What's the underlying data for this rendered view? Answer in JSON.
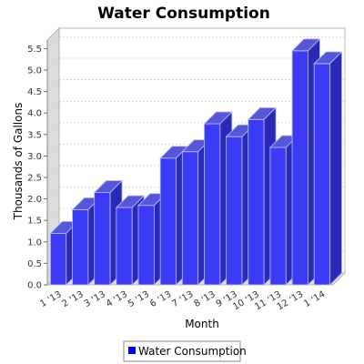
{
  "chart_data": {
    "type": "bar",
    "title": "Water Consumption",
    "xlabel": "Month",
    "ylabel": "Thousands of Gallons",
    "categories": [
      "1 '13",
      "2 '13",
      "3 '13",
      "4 '13",
      "5 '13",
      "6 '13",
      "7 '13",
      "8 '13",
      "9 '13",
      "10 '13",
      "11 '13",
      "12 '13",
      "1 '14"
    ],
    "series": [
      {
        "name": "Water Consumption",
        "values": [
          1.2,
          1.75,
          2.15,
          1.8,
          1.85,
          2.95,
          3.1,
          3.75,
          3.45,
          3.85,
          3.2,
          5.45,
          5.15
        ]
      }
    ],
    "ylim": [
      0,
      5.7
    ],
    "yticks": [
      "0.0",
      "0.5",
      "1.0",
      "1.5",
      "2.0",
      "2.5",
      "3.0",
      "3.5",
      "4.0",
      "4.5",
      "5.0",
      "5.5"
    ],
    "grid": true,
    "legend_position": "bottom",
    "colors": {
      "bar_front": "#3b3bf5",
      "bar_top": "#5656d8",
      "bar_side": "#2a2ab8",
      "wall": "#dcdcdc",
      "plot_bg": "#ffffff",
      "grid": "#c8c8c8",
      "legend_swatch": "#0000ff"
    }
  }
}
